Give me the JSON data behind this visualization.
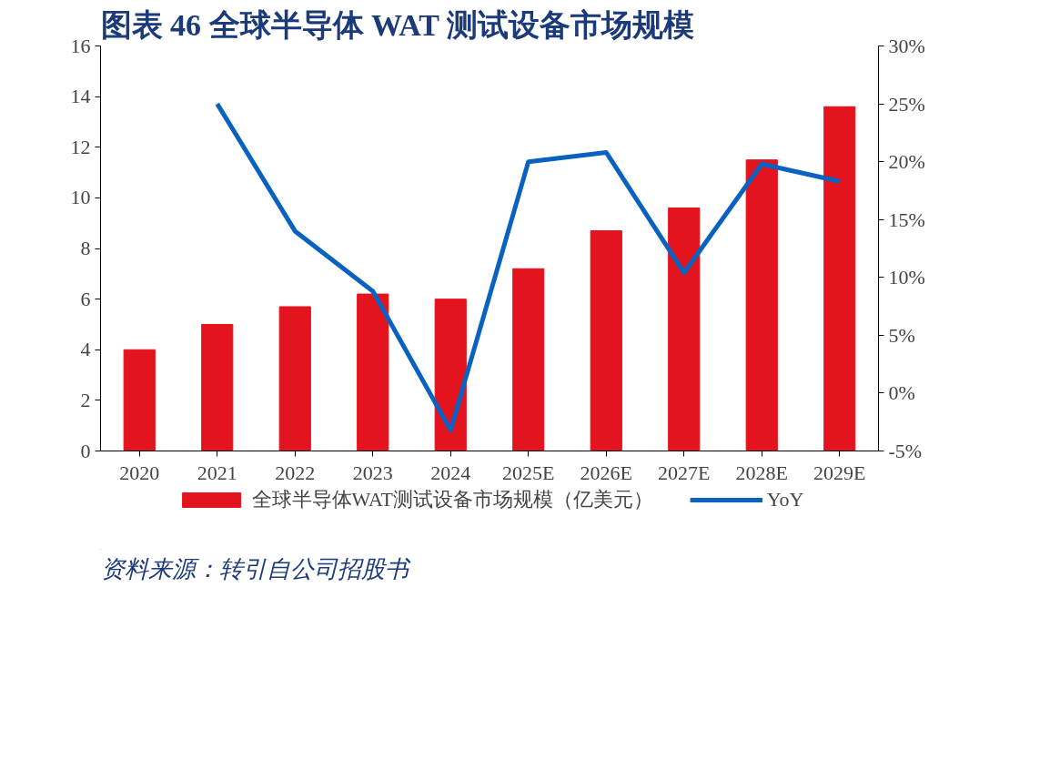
{
  "chart_data": {
    "type": "bar",
    "title": "图表 46   全球半导体 WAT 测试设备市场规模",
    "annotations": [
      "资料来源：转引自公司招股书"
    ],
    "categories": [
      "2020",
      "2021",
      "2022",
      "2023",
      "2024",
      "2025E",
      "2026E",
      "2027E",
      "2028E",
      "2029E"
    ],
    "series": [
      {
        "name": "全球半导体WAT测试设备市场规模（亿美元）",
        "color": "#e3141e",
        "values": [
          4.0,
          5.0,
          5.7,
          6.2,
          6.0,
          7.2,
          8.7,
          9.6,
          11.5,
          13.6
        ]
      },
      {
        "name": "YoY",
        "type": "line",
        "axis": "y2",
        "color": "#0a62c0",
        "values": [
          null,
          25.0,
          14.0,
          8.8,
          -3.2,
          20.0,
          20.8,
          10.4,
          19.8,
          18.3
        ]
      }
    ],
    "ylim": [
      0,
      16
    ],
    "yticks": [
      0,
      2,
      4,
      6,
      8,
      10,
      12,
      14,
      16
    ],
    "y2lim": [
      -5,
      30
    ],
    "y2ticks": [
      {
        "value": -5,
        "label": "-5%"
      },
      {
        "value": 0,
        "label": "0%"
      },
      {
        "value": 5,
        "label": "5%"
      },
      {
        "value": 10,
        "label": "10%"
      },
      {
        "value": 15,
        "label": "15%"
      },
      {
        "value": 20,
        "label": "20%"
      },
      {
        "value": 25,
        "label": "25%"
      },
      {
        "value": 30,
        "label": "30%"
      }
    ],
    "legend": "bottom",
    "grid": false
  }
}
